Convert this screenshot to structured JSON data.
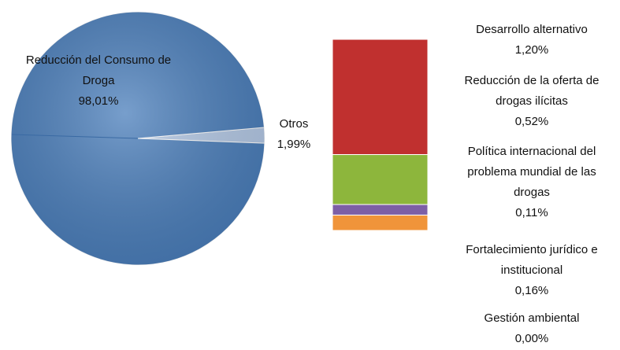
{
  "chart_data": [
    {
      "type": "pie",
      "categories": [
        "Reducción del Consumo de Droga",
        "Otros"
      ],
      "values": [
        98.01,
        1.99
      ],
      "value_labels": [
        "98,01%",
        "1,99%"
      ],
      "colors": [
        "#4a7ebb",
        "#b4c9e6"
      ]
    },
    {
      "type": "bar",
      "categories": [
        "Desarrollo alternativo",
        "Reducción de la oferta de drogas ilícitas",
        "Política internacional del problema mundial de las drogas",
        "Fortalecimiento jurídico e institucional",
        "Gestión ambiental"
      ],
      "values": [
        1.2,
        0.52,
        0.11,
        0.16,
        0.0
      ],
      "value_labels": [
        "1,20%",
        "0,52%",
        "0,11%",
        "0,16%",
        "0,00%"
      ],
      "colors": [
        "#c0302f",
        "#8db63c",
        "#7d5fa6",
        "#f0943a",
        "#4f81bd"
      ],
      "stacked": true
    }
  ]
}
